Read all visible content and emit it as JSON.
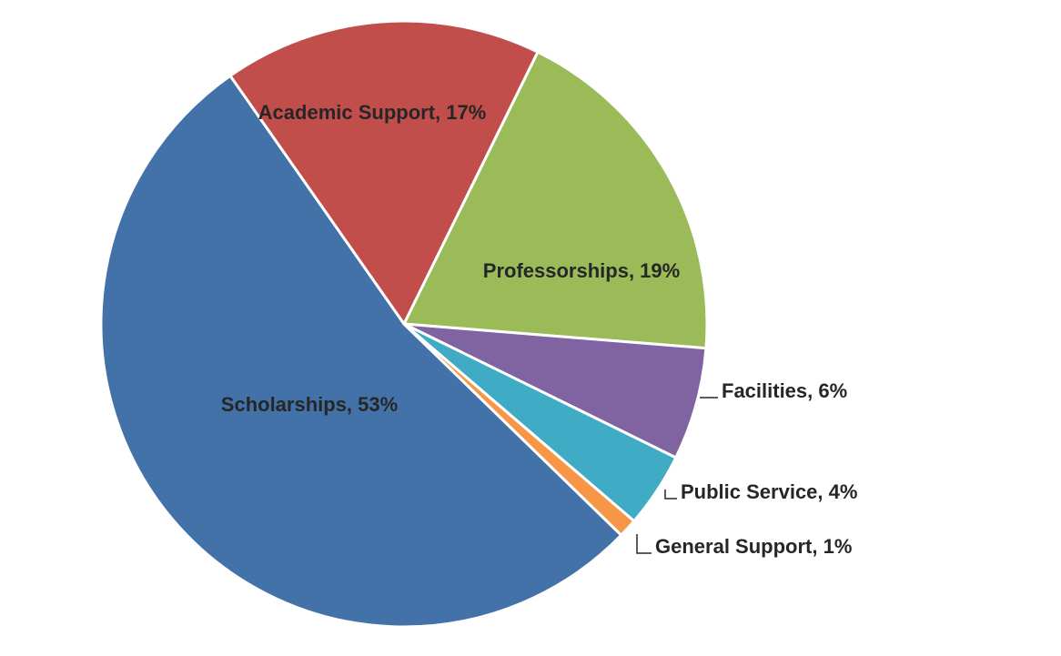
{
  "chart_data": {
    "type": "pie",
    "title": "",
    "slices": [
      {
        "label": "Scholarships",
        "value": 53,
        "display": "Scholarships, 53%",
        "color": "#4272A8"
      },
      {
        "label": "Academic Support",
        "value": 17,
        "display": "Academic Support, 17%",
        "color": "#C24E4B"
      },
      {
        "label": "Professorships",
        "value": 19,
        "display": "Professorships, 19%",
        "color": "#9BBB59"
      },
      {
        "label": "Facilities",
        "value": 6,
        "display": "Facilities, 6%",
        "color": "#8064A2"
      },
      {
        "label": "Public Service",
        "value": 4,
        "display": "Public Service, 4%",
        "color": "#3FABC5"
      },
      {
        "label": "General Support",
        "value": 1,
        "display": "General Support, 1%",
        "color": "#F79646"
      }
    ],
    "legend": "none",
    "label_placement": "inside-large-outside-small-with-leader-lines"
  }
}
